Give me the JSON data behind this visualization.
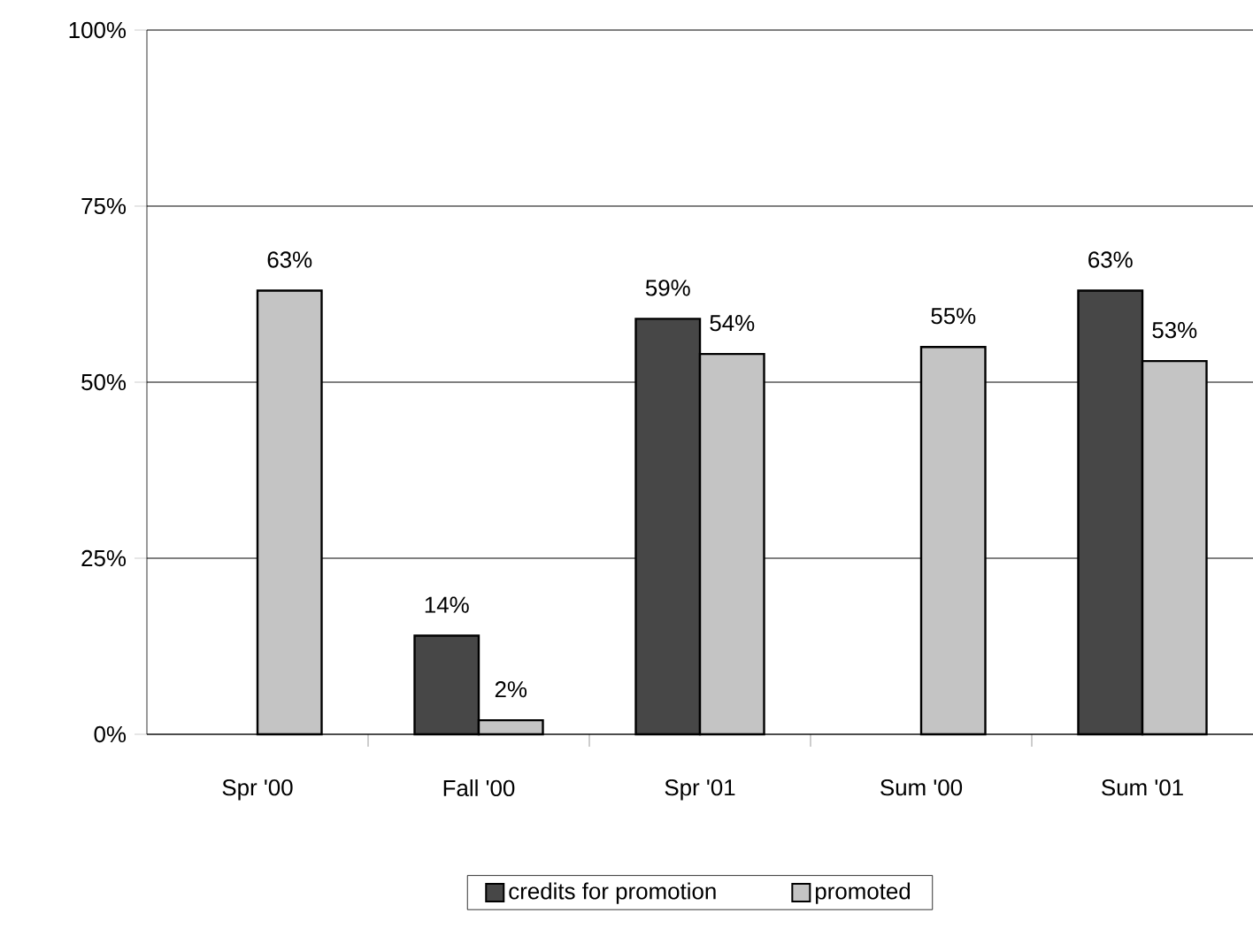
{
  "chart_data": {
    "type": "bar",
    "categories": [
      "Spr '00",
      "Fall '00",
      "Spr '01",
      "Sum '00",
      "Sum '01"
    ],
    "series": [
      {
        "name": "credits for promotion",
        "color": "#474747",
        "values": [
          null,
          14,
          59,
          null,
          63
        ],
        "value_labels": [
          null,
          "14%",
          "59%",
          null,
          "63%"
        ]
      },
      {
        "name": "promoted",
        "color": "#c4c4c4",
        "values": [
          63,
          2,
          54,
          55,
          53
        ],
        "value_labels": [
          "63%",
          "2%",
          "54%",
          "55%",
          "53%"
        ]
      }
    ],
    "ylim": [
      0,
      100
    ],
    "yticks": [
      {
        "value": 0,
        "label": "0%"
      },
      {
        "value": 25,
        "label": "25%"
      },
      {
        "value": 50,
        "label": "50%"
      },
      {
        "value": 75,
        "label": "75%"
      },
      {
        "value": 100,
        "label": "100%"
      }
    ],
    "grid": "y",
    "legend": "bottom"
  }
}
